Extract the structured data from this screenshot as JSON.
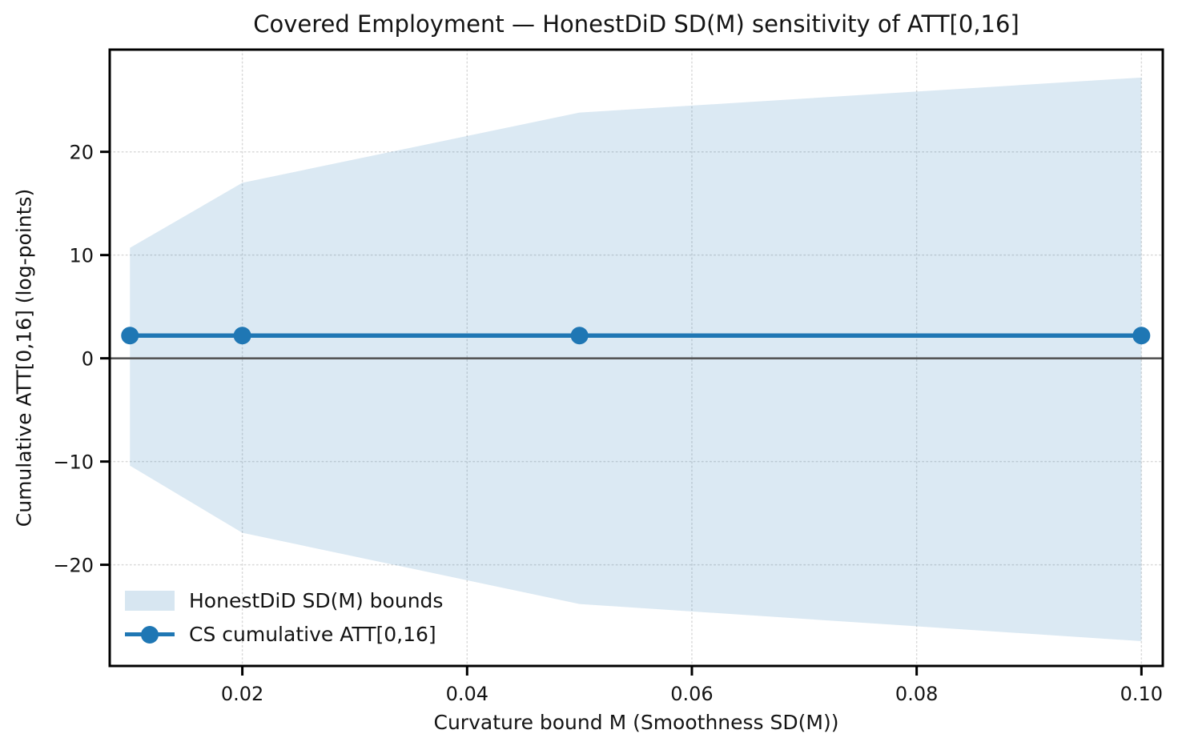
{
  "colors": {
    "line": "#1f77b4",
    "band": "#1f77b4",
    "band_opacity": 0.16,
    "zero_line": "#555555",
    "grid": "#d9d9d9",
    "spine": "#000000",
    "text": "#141414"
  },
  "chart_data": {
    "type": "area",
    "title": "Covered Employment — HonestDiD SD(M) sensitivity of ATT[0,16]",
    "xlabel": "Curvature bound M (Smoothness SD(M))",
    "ylabel": "Cumulative ATT[0,16] (log-points)",
    "x": [
      0.01,
      0.02,
      0.05,
      0.1
    ],
    "series": [
      {
        "name": "HonestDiD SD(M) bounds",
        "type": "band",
        "upper": [
          10.7,
          17.0,
          23.8,
          27.2
        ],
        "lower": [
          -10.4,
          -16.9,
          -23.8,
          -27.4
        ]
      },
      {
        "name": "CS cumulative ATT[0,16]",
        "type": "line",
        "marker": "circle",
        "values": [
          2.2,
          2.2,
          2.2,
          2.2
        ]
      }
    ],
    "zero_line": 0,
    "xlim": [
      0.0082,
      0.1019
    ],
    "ylim": [
      -29.8,
      29.9
    ],
    "xticks": [
      0.02,
      0.04,
      0.06,
      0.08,
      0.1
    ],
    "xtick_labels": [
      "0.02",
      "0.04",
      "0.06",
      "0.08",
      "0.10"
    ],
    "yticks": [
      -20,
      -10,
      0,
      10,
      20
    ],
    "ytick_labels": [
      "−20",
      "−10",
      "0",
      "10",
      "20"
    ],
    "grid": "dotted",
    "legend_position": "lower left"
  }
}
